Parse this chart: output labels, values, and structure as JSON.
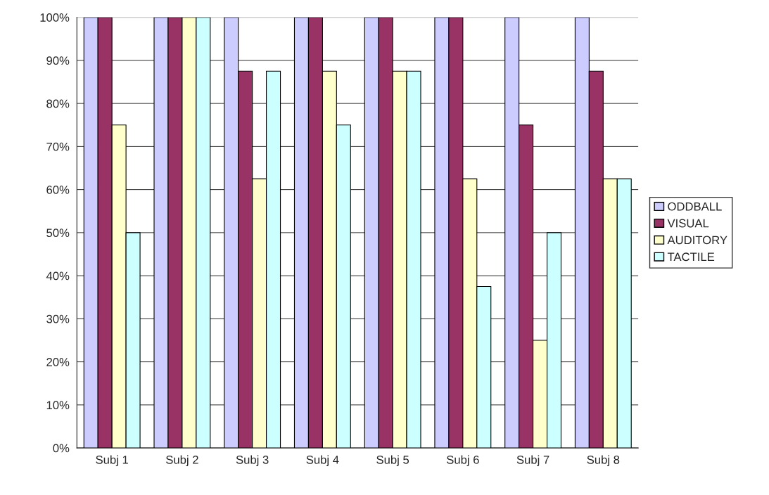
{
  "chart_data": {
    "type": "bar",
    "categories": [
      "Subj 1",
      "Subj 2",
      "Subj 3",
      "Subj 4",
      "Subj 5",
      "Subj 6",
      "Subj 7",
      "Subj 8"
    ],
    "series": [
      {
        "name": "ODDBALL",
        "color": "#ccccff",
        "values": [
          100,
          100,
          100,
          100,
          100,
          100,
          100,
          100
        ]
      },
      {
        "name": "VISUAL",
        "color": "#993366",
        "values": [
          100,
          100,
          87.5,
          100,
          100,
          100,
          75,
          87.5
        ]
      },
      {
        "name": "AUDITORY",
        "color": "#ffffcc",
        "values": [
          75,
          100,
          62.5,
          87.5,
          87.5,
          62.5,
          25,
          62.5
        ]
      },
      {
        "name": "TACTILE",
        "color": "#ccffff",
        "values": [
          50,
          100,
          87.5,
          75,
          87.5,
          37.5,
          50,
          62.5
        ]
      }
    ],
    "ylim": [
      0,
      100
    ],
    "yticks": [
      {
        "value": 0,
        "label": "0%"
      },
      {
        "value": 10,
        "label": "10%"
      },
      {
        "value": 20,
        "label": "20%"
      },
      {
        "value": 30,
        "label": "30%"
      },
      {
        "value": 40,
        "label": "40%"
      },
      {
        "value": 50,
        "label": "50%"
      },
      {
        "value": 60,
        "label": "60%"
      },
      {
        "value": 70,
        "label": "70%"
      },
      {
        "value": 80,
        "label": "80%"
      },
      {
        "value": 90,
        "label": "90%"
      },
      {
        "value": 100,
        "label": "100%"
      }
    ],
    "grid": "y",
    "legend": "right"
  }
}
